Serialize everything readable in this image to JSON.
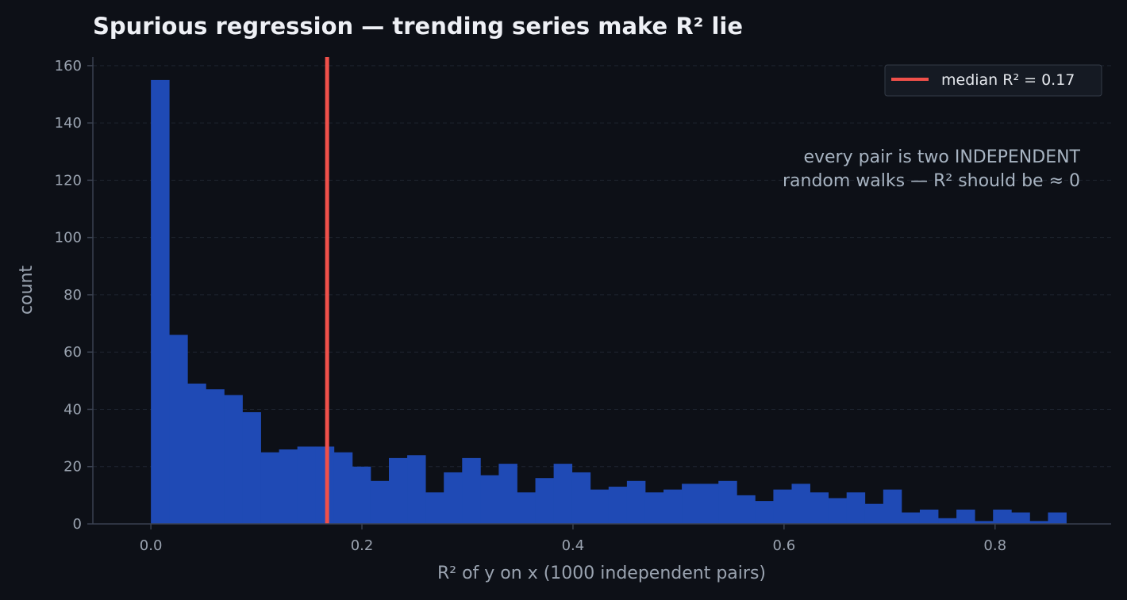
{
  "chart_data": {
    "type": "bar",
    "title": "Spurious regression — trending series make R² lie",
    "xlabel": "R² of y on x (1000 independent pairs)",
    "ylabel": "count",
    "xlim": [
      -0.055,
      0.91
    ],
    "ylim": [
      0,
      163
    ],
    "x_ticks": [
      0.0,
      0.2,
      0.4,
      0.6,
      0.8
    ],
    "x_tick_labels": [
      "0.0",
      "0.2",
      "0.4",
      "0.6",
      "0.8"
    ],
    "y_ticks": [
      0,
      20,
      40,
      60,
      80,
      100,
      120,
      140,
      160
    ],
    "y_tick_labels": [
      "0",
      "20",
      "40",
      "60",
      "80",
      "100",
      "120",
      "140",
      "160"
    ],
    "grid": "horizontal dashed",
    "bin_start": 0.0,
    "bin_width": 0.01735,
    "values": [
      155,
      66,
      49,
      47,
      45,
      39,
      25,
      26,
      27,
      27,
      25,
      20,
      15,
      23,
      24,
      11,
      18,
      23,
      17,
      21,
      11,
      16,
      21,
      18,
      12,
      13,
      15,
      11,
      12,
      14,
      14,
      15,
      10,
      8,
      12,
      14,
      11,
      9,
      11,
      7,
      12,
      4,
      5,
      2,
      5,
      1,
      5,
      4,
      1,
      4
    ],
    "bar_color": "#1f4ab5",
    "median_line": {
      "x": 0.167,
      "color": "#f0504a"
    },
    "legend": {
      "label": "median R² = 0.17",
      "placement": "top-right"
    },
    "annotation": [
      "every pair is two INDEPENDENT",
      "random walks — R² should be ≈ 0"
    ]
  }
}
